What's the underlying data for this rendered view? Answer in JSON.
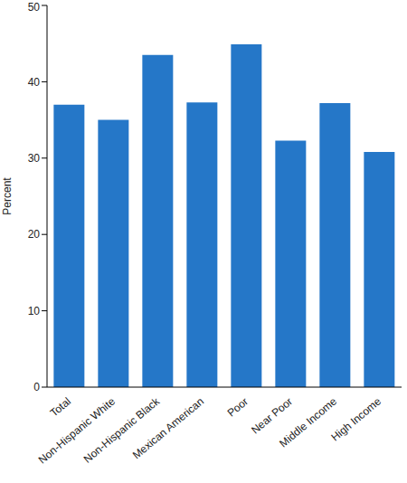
{
  "chart_data": {
    "type": "bar",
    "y_label": "Percent",
    "categories": [
      "Total",
      "Non-Hispanic White",
      "Non-Hispanic Black",
      "Mexican American",
      "Poor",
      "Near Poor",
      "Middle Income",
      "High Income"
    ],
    "values": [
      37.0,
      35.0,
      43.5,
      37.3,
      44.9,
      32.3,
      37.2,
      30.8
    ],
    "color": "#2577c8",
    "ylim": [
      0,
      50
    ],
    "yticks": [
      0,
      10,
      20,
      30,
      40,
      50
    ],
    "grid": false
  }
}
